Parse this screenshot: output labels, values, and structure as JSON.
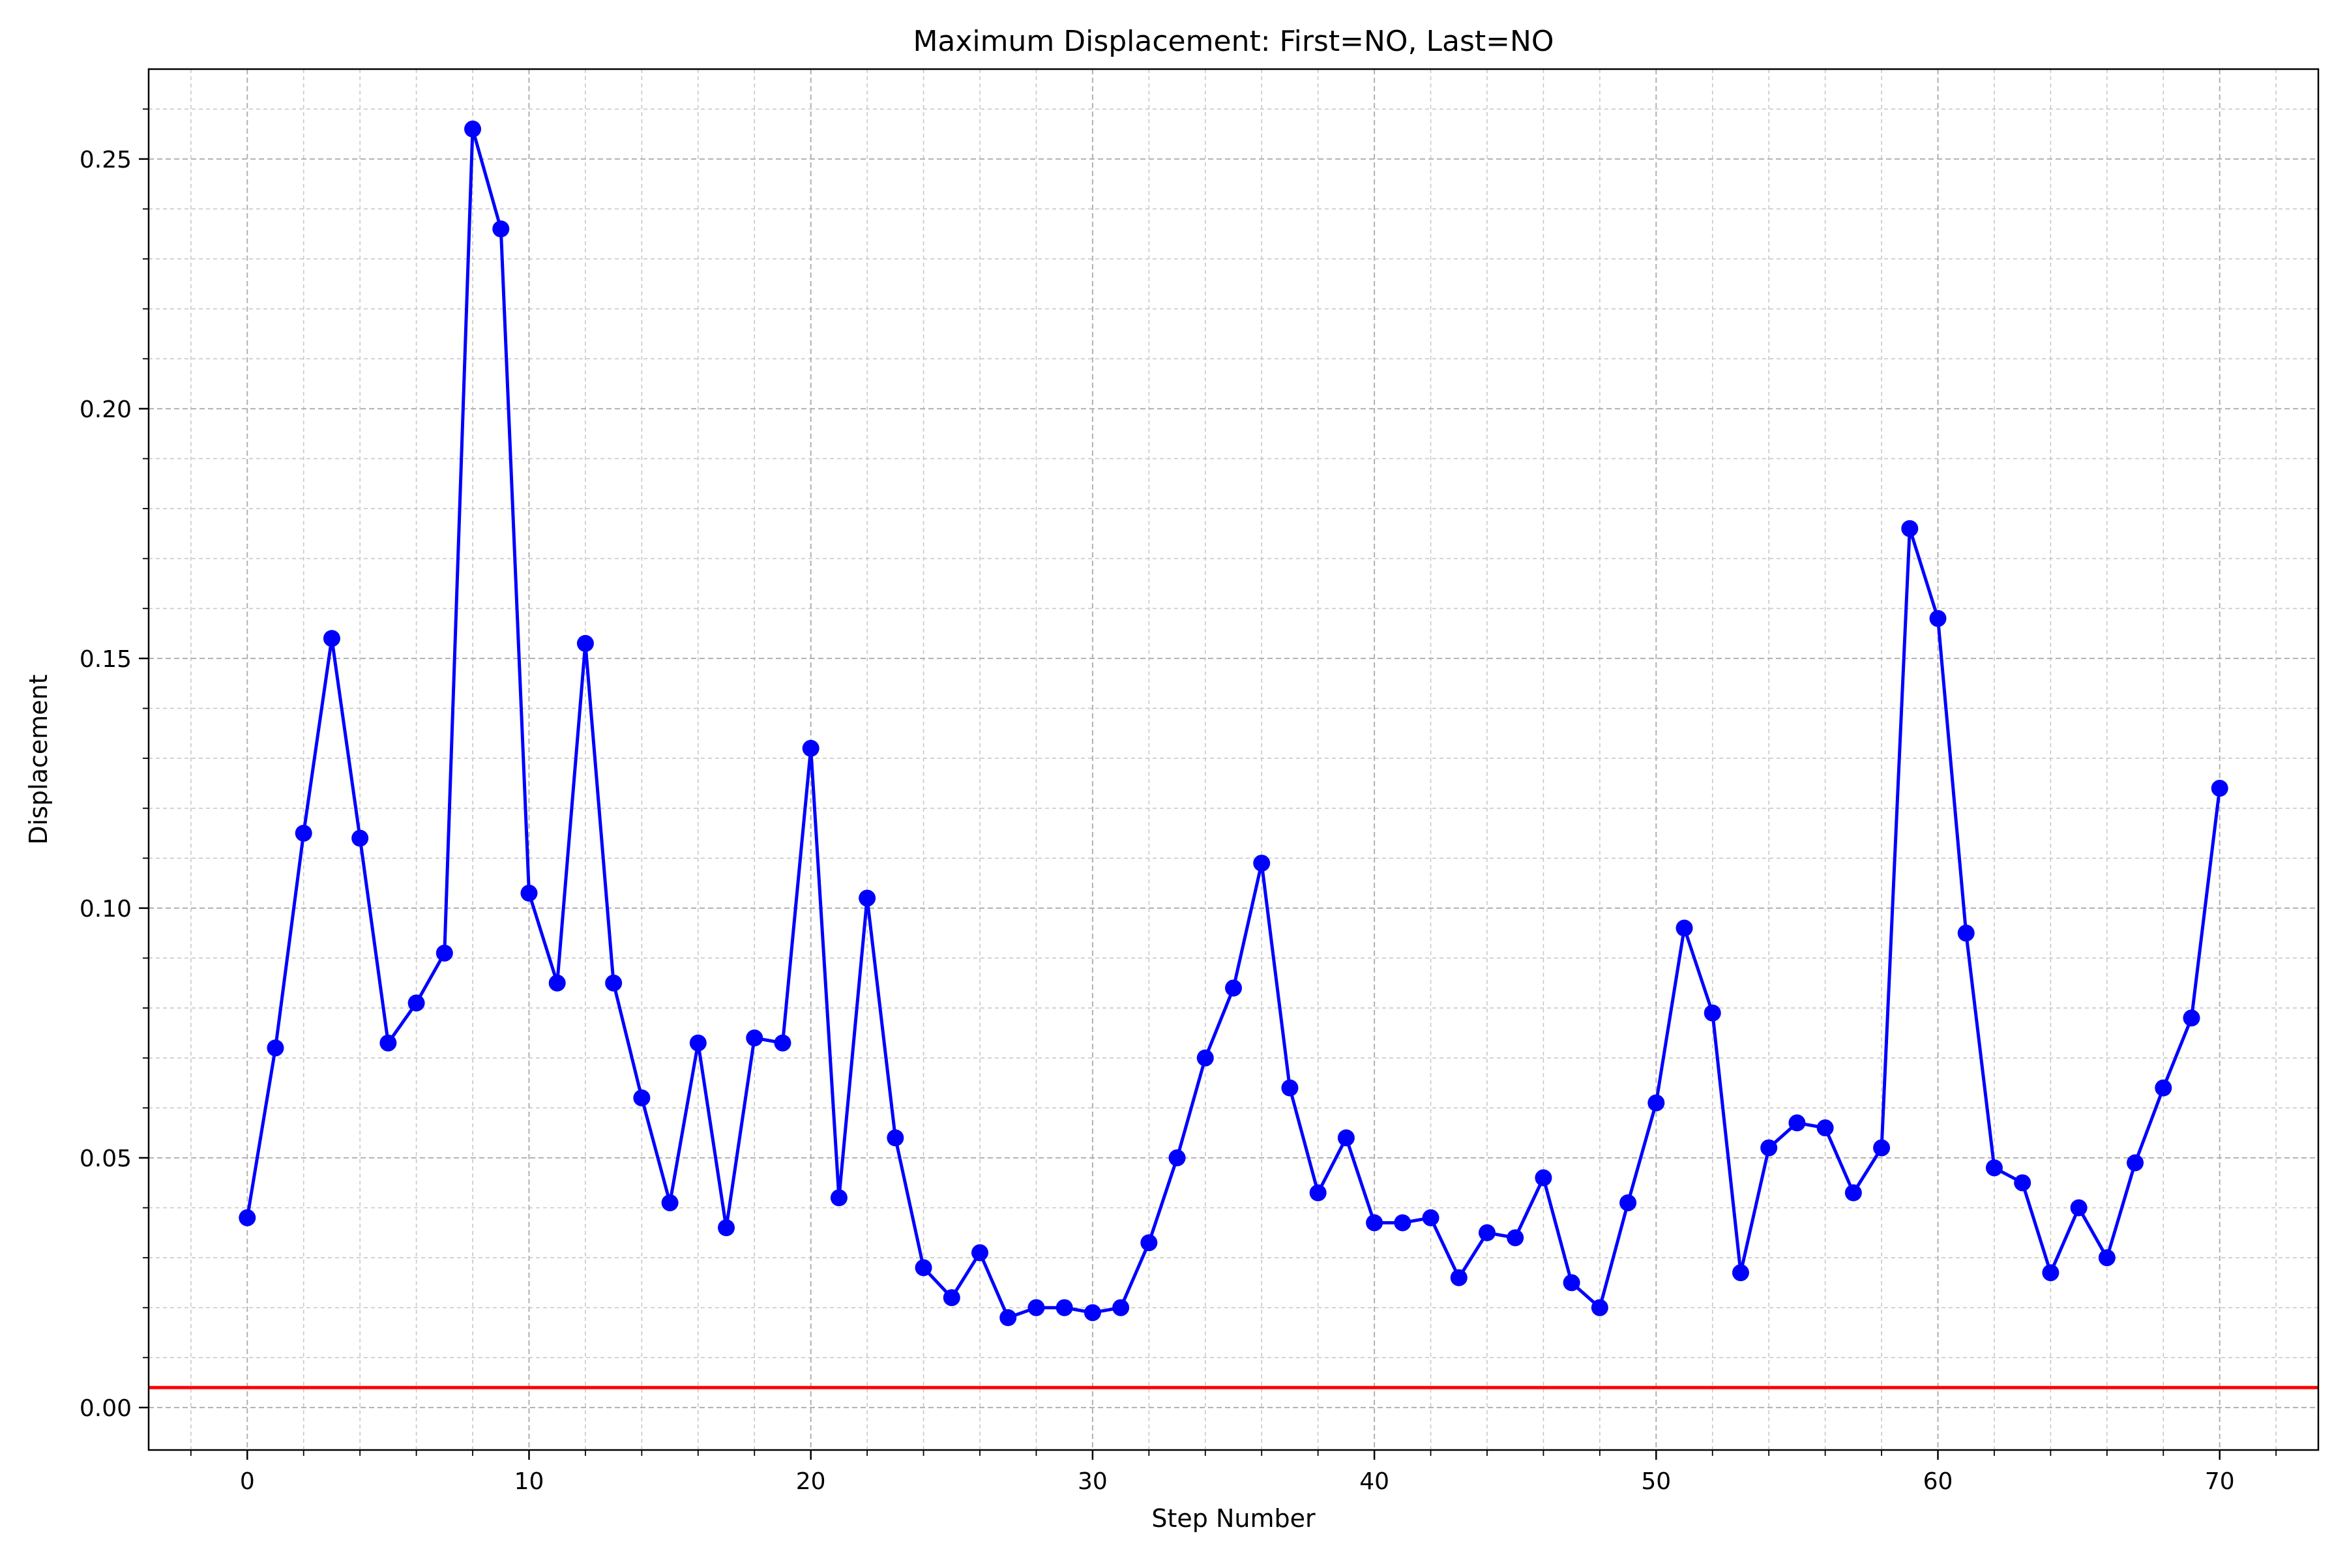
{
  "chart_data": {
    "type": "line",
    "title": "Maximum Displacement: First=NO, Last=NO",
    "xlabel": "Step Number",
    "ylabel": "Displacement",
    "xlim": [
      -3.5,
      73.5
    ],
    "ylim": [
      -0.0085,
      0.268
    ],
    "xticks": [
      0,
      10,
      20,
      30,
      40,
      50,
      60,
      70
    ],
    "xtick_labels": [
      "0",
      "10",
      "20",
      "30",
      "40",
      "50",
      "60",
      "70"
    ],
    "yticks": [
      0.0,
      0.05,
      0.1,
      0.15,
      0.2,
      0.25
    ],
    "ytick_labels": [
      "0.00",
      "0.05",
      "0.10",
      "0.15",
      "0.20",
      "0.25"
    ],
    "x_minor_step": 2,
    "y_minor_step": 0.01,
    "grid": true,
    "threshold": {
      "y": 0.004,
      "color": "#ff0000"
    },
    "series": [
      {
        "color": "#0000ff",
        "marker": "circle",
        "x": [
          0,
          1,
          2,
          3,
          4,
          5,
          6,
          7,
          8,
          9,
          10,
          11,
          12,
          13,
          14,
          15,
          16,
          17,
          18,
          19,
          20,
          21,
          22,
          23,
          24,
          25,
          26,
          27,
          28,
          29,
          30,
          31,
          32,
          33,
          34,
          35,
          36,
          37,
          38,
          39,
          40,
          41,
          42,
          43,
          44,
          45,
          46,
          47,
          48,
          49,
          50,
          51,
          52,
          53,
          54,
          55,
          56,
          57,
          58,
          59,
          60,
          61,
          62,
          63,
          64,
          65,
          66,
          67,
          68,
          69,
          70
        ],
        "y": [
          0.038,
          0.072,
          0.115,
          0.154,
          0.114,
          0.073,
          0.081,
          0.091,
          0.256,
          0.236,
          0.103,
          0.085,
          0.153,
          0.085,
          0.062,
          0.041,
          0.073,
          0.036,
          0.074,
          0.073,
          0.132,
          0.042,
          0.102,
          0.054,
          0.028,
          0.022,
          0.031,
          0.018,
          0.02,
          0.02,
          0.019,
          0.02,
          0.033,
          0.05,
          0.07,
          0.084,
          0.109,
          0.064,
          0.043,
          0.054,
          0.037,
          0.037,
          0.038,
          0.026,
          0.035,
          0.034,
          0.046,
          0.025,
          0.02,
          0.041,
          0.061,
          0.096,
          0.079,
          0.027,
          0.052,
          0.057,
          0.056,
          0.043,
          0.052,
          0.176,
          0.158,
          0.095,
          0.048,
          0.045,
          0.027,
          0.04,
          0.03,
          0.049,
          0.064,
          0.078,
          0.124
        ]
      }
    ]
  }
}
